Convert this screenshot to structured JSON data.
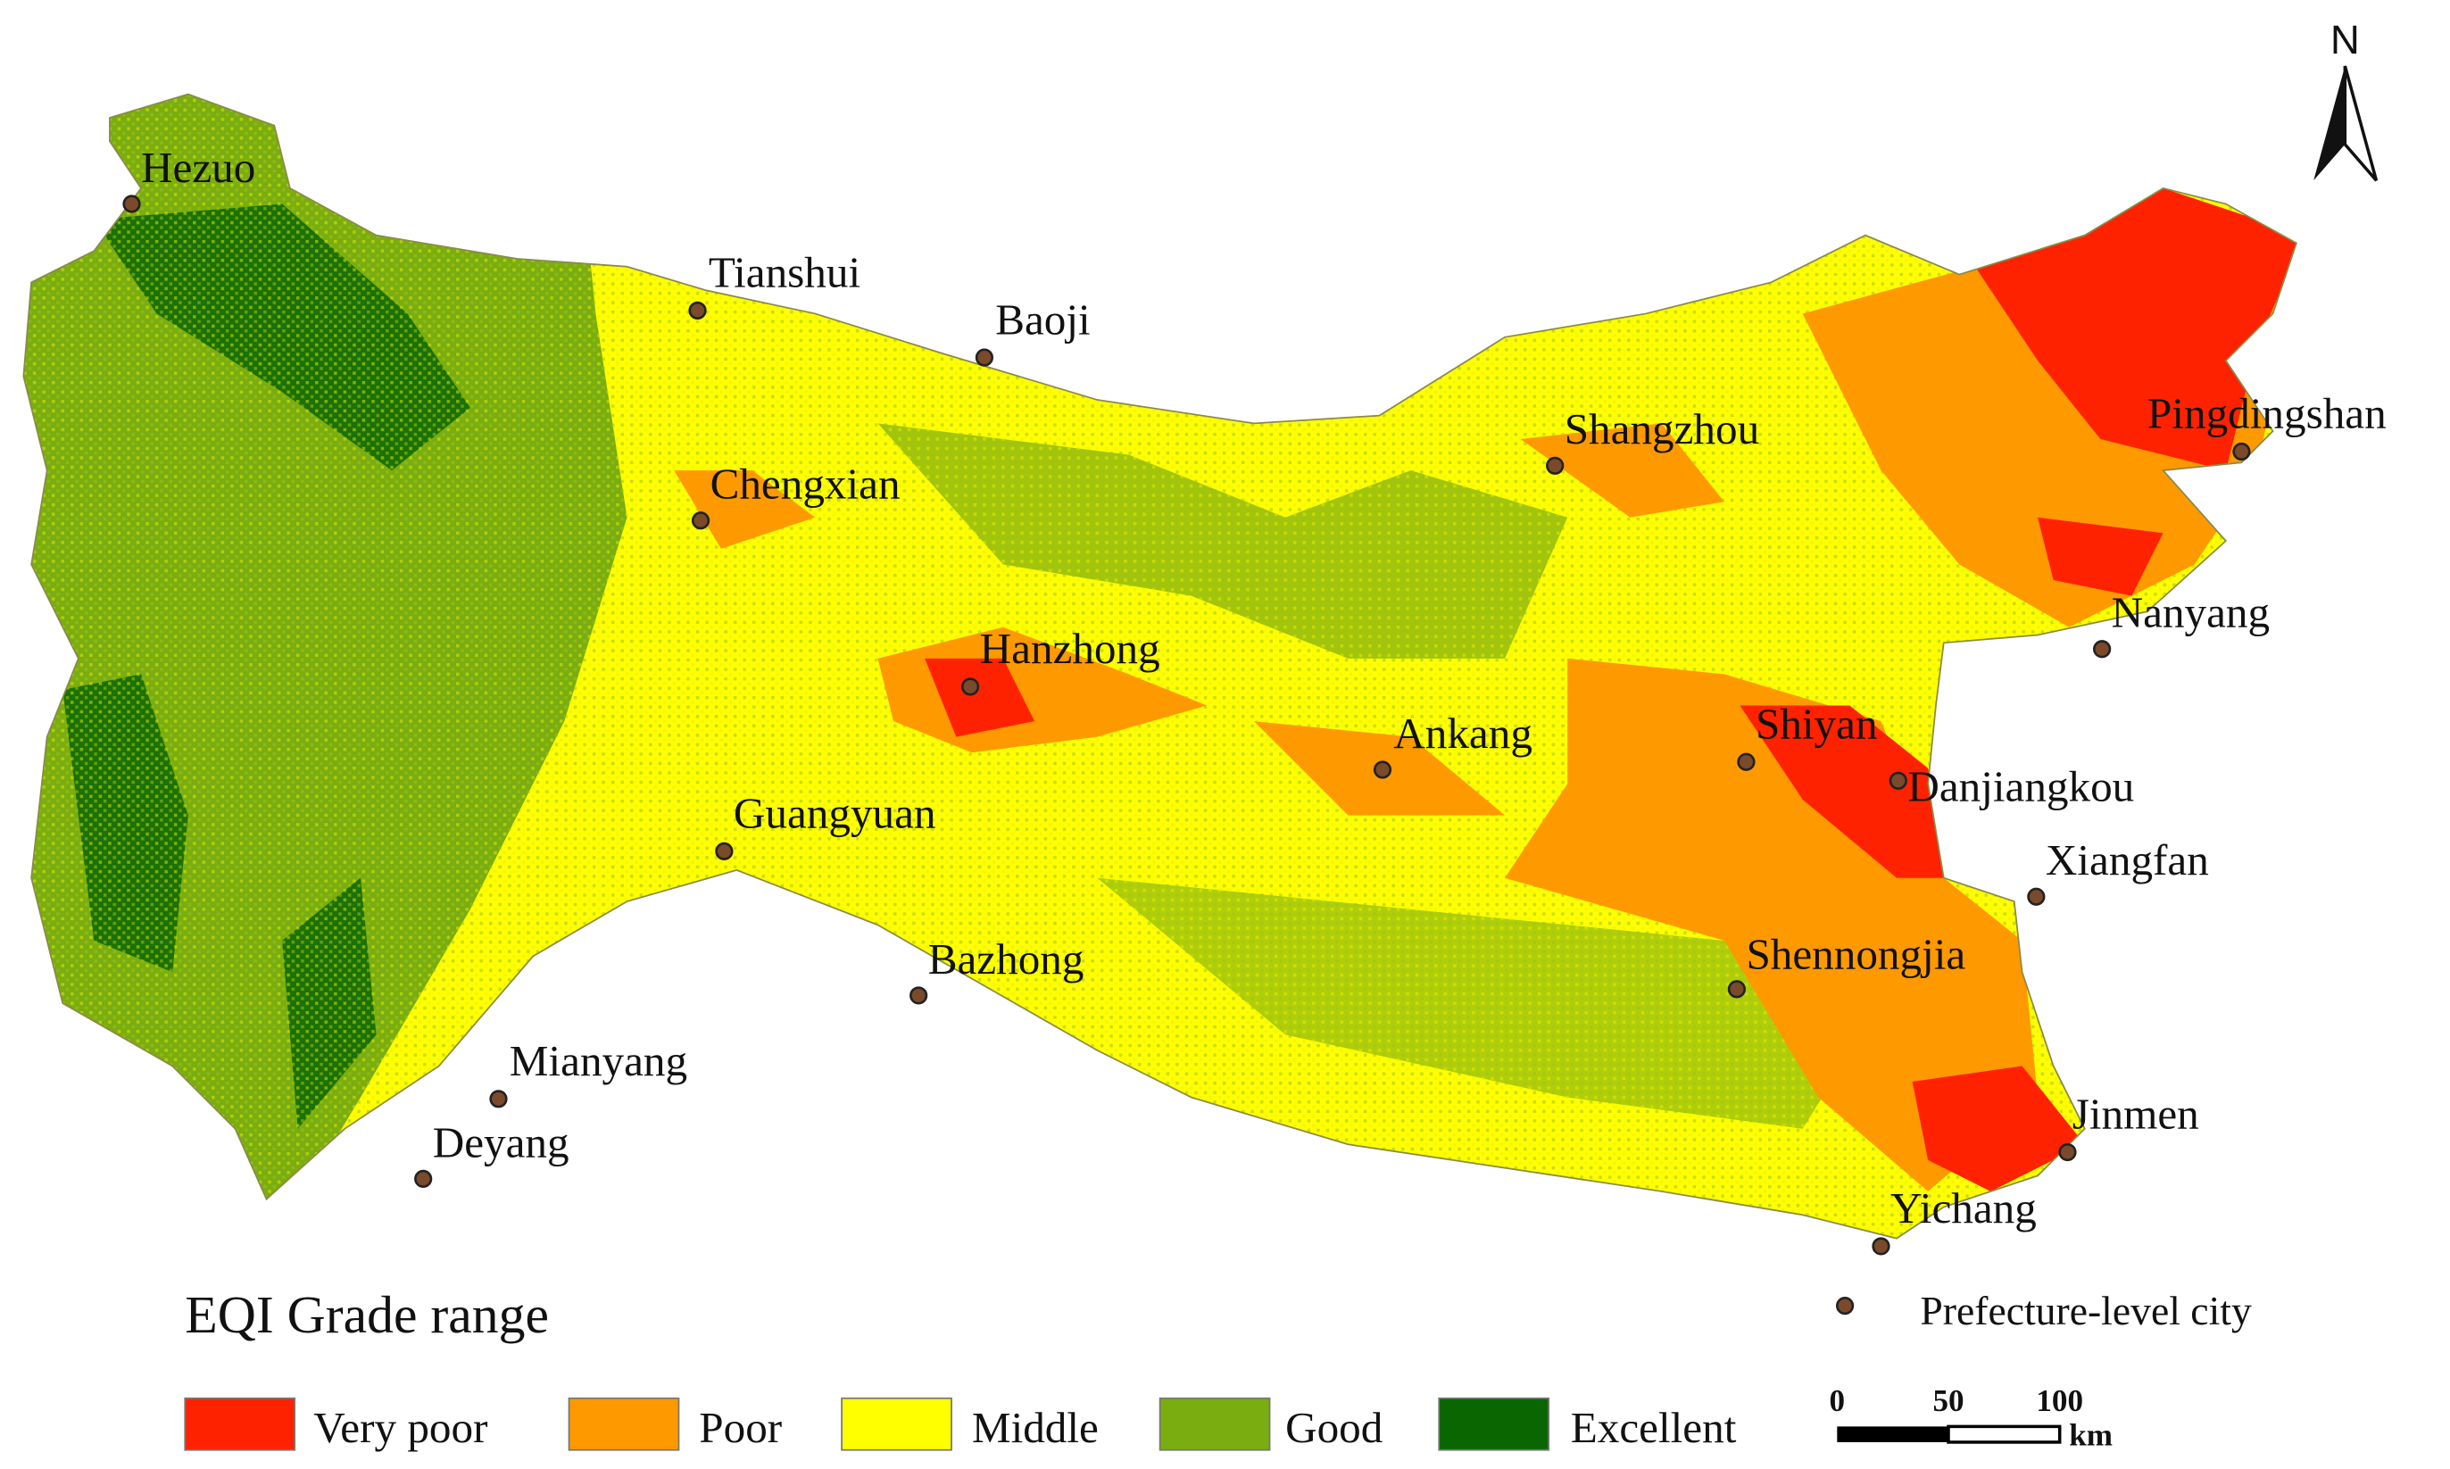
{
  "north": "N",
  "cities": [
    "Hezuo",
    "Tianshui",
    "Baoji",
    "Chengxian",
    "Shangzhou",
    "Pingdingshan",
    "Nanyang",
    "Hanzhong",
    "Ankang",
    "Shiyan",
    "Danjiangkou",
    "Guangyuan",
    "Xiangfan",
    "Shennongjia",
    "Bazhong",
    "Mianyang",
    "Deyang",
    "Jinmen",
    "Yichang"
  ],
  "legend": {
    "title": "EQI Grade range",
    "grades": [
      {
        "label": "Very poor",
        "color": "#ff2200"
      },
      {
        "label": "Poor",
        "color": "#ff9900"
      },
      {
        "label": "Middle",
        "color": "#ffff00"
      },
      {
        "label": "Good",
        "color": "#7aad0f"
      },
      {
        "label": "Excellent",
        "color": "#0a6600"
      }
    ],
    "city_marker": "Prefecture-level city"
  },
  "scale_bar": {
    "ticks": [
      "0",
      "50",
      "100"
    ],
    "unit": "km"
  }
}
